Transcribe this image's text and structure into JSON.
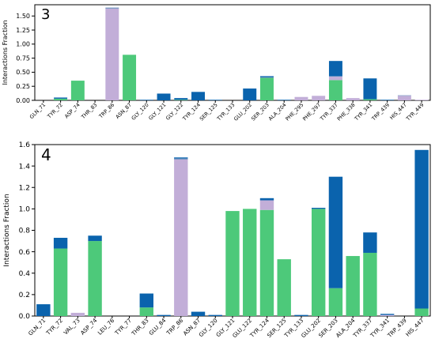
{
  "colors": {
    "hbond": "#4dc97a",
    "water": "#0a63ad",
    "hydrophobic": "#c2aed8",
    "ionic": "#7b98c4"
  },
  "chart_data": [
    {
      "type": "bar",
      "stacked": true,
      "panel_label": "3",
      "ylabel": "Interactions Fraction",
      "ylim": [
        0,
        1.7
      ],
      "yticks": [
        "0.00",
        "0.25",
        "0.50",
        "0.75",
        "1.00",
        "1.25",
        "1.50"
      ],
      "grid": false,
      "categories": [
        "GLN_71",
        "TYR_72",
        "ASP_74",
        "THR_83",
        "TRP_86",
        "ASN_87",
        "GLY_120",
        "GLY_121",
        "GLY_122",
        "TYR_124",
        "SER_125",
        "TYR_133",
        "GLU_202",
        "SER_203",
        "ALA_204",
        "PHE_295",
        "PHE_297",
        "TYR_337",
        "PHE_338",
        "TYR_341",
        "TRP_439",
        "HIS_447",
        "TYR_449"
      ],
      "series": [
        {
          "color_key": "hbond",
          "values": [
            0,
            0.03,
            0.35,
            0,
            0,
            0.81,
            0,
            0,
            0.01,
            0,
            0,
            0,
            0,
            0.4,
            0,
            0,
            0,
            0.36,
            0,
            0.02,
            0,
            0,
            0
          ]
        },
        {
          "color_key": "hydrophobic",
          "values": [
            0,
            0,
            0,
            0,
            1.63,
            0,
            0,
            0,
            0,
            0,
            0,
            0,
            0,
            0,
            0,
            0.06,
            0.08,
            0.06,
            0.04,
            0,
            0,
            0.08,
            0.01
          ]
        },
        {
          "color_key": "ionic",
          "values": [
            0,
            0,
            0,
            0,
            0.02,
            0,
            0,
            0,
            0,
            0,
            0,
            0,
            0,
            0.01,
            0,
            0,
            0,
            0.01,
            0,
            0,
            0,
            0.01,
            0
          ]
        },
        {
          "color_key": "water",
          "values": [
            0,
            0.02,
            0,
            0,
            0,
            0,
            0.01,
            0.12,
            0.03,
            0.15,
            0.01,
            0,
            0.21,
            0.02,
            0.01,
            0,
            0,
            0.27,
            0,
            0.37,
            0.01,
            0,
            0
          ]
        }
      ]
    },
    {
      "type": "bar",
      "stacked": true,
      "panel_label": "4",
      "ylabel": "Interactions Fraction",
      "ylim": [
        0,
        1.6
      ],
      "yticks": [
        "0.0",
        "0.2",
        "0.4",
        "0.6",
        "0.8",
        "1.0",
        "1.2",
        "1.4",
        "1.6"
      ],
      "grid": false,
      "categories": [
        "GLN_71",
        "TYR_72",
        "VAL_73",
        "ASP_74",
        "LEU_76",
        "TYR_77",
        "THR_83",
        "GLU_84",
        "TRP_86",
        "ASN_87",
        "GLY_120",
        "GLY_121",
        "GLU_122",
        "TYR_124",
        "SER_125",
        "TYR_133",
        "GLU_202",
        "SER_203",
        "ALA_204",
        "TYR_337",
        "TYR_341",
        "TRP_439",
        "HIS_447"
      ],
      "series": [
        {
          "color_key": "hbond",
          "values": [
            0,
            0.63,
            0,
            0.7,
            0,
            0,
            0.08,
            0,
            0,
            0,
            0,
            0.98,
            1.0,
            0.99,
            0.53,
            0,
            1.0,
            0.26,
            0.56,
            0.59,
            0,
            0,
            0.07
          ]
        },
        {
          "color_key": "hydrophobic",
          "values": [
            0,
            0,
            0.03,
            0,
            0,
            0,
            0,
            0,
            1.46,
            0,
            0,
            0,
            0,
            0.09,
            0,
            0,
            0,
            0,
            0,
            0,
            0.01,
            0,
            0
          ]
        },
        {
          "color_key": "ionic",
          "values": [
            0,
            0,
            0,
            0,
            0,
            0,
            0,
            0,
            0.01,
            0,
            0,
            0,
            0,
            0,
            0,
            0,
            0,
            0,
            0,
            0,
            0,
            0,
            0
          ]
        },
        {
          "color_key": "water",
          "values": [
            0.11,
            0.1,
            0,
            0.05,
            0,
            0,
            0.13,
            0.01,
            0.01,
            0.04,
            0.01,
            0,
            0,
            0.02,
            0,
            0.01,
            0.01,
            1.04,
            0,
            0.19,
            0.01,
            0,
            1.48
          ]
        }
      ]
    }
  ]
}
